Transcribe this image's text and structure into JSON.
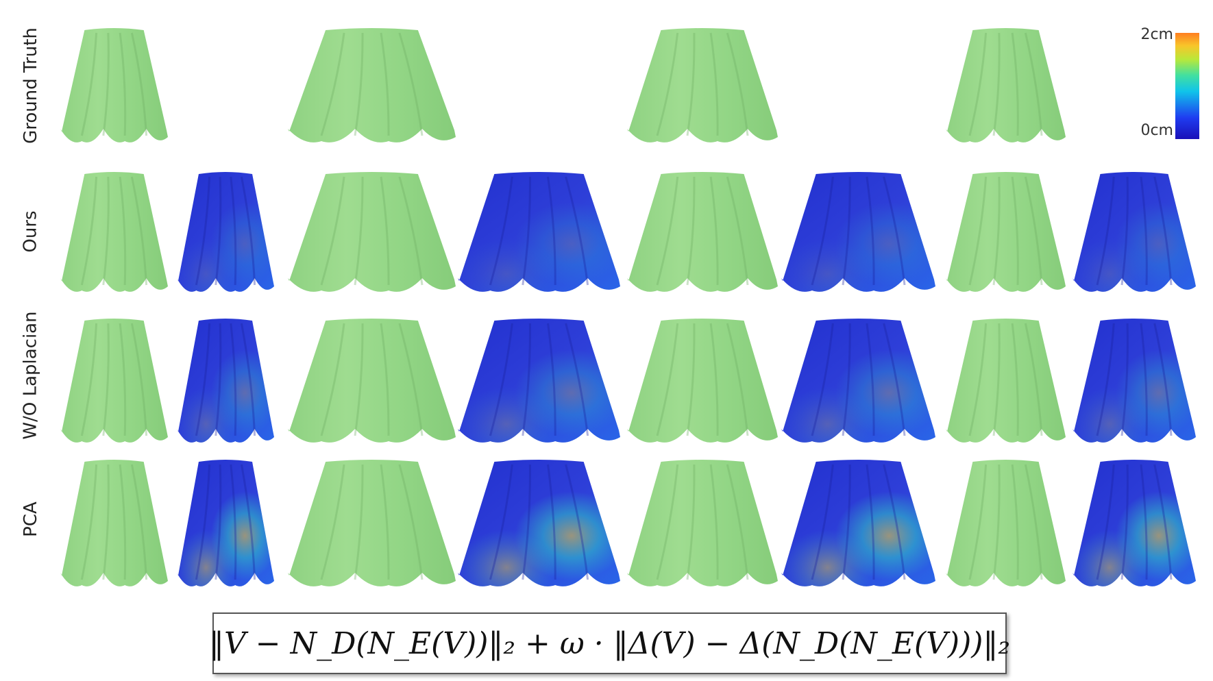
{
  "rows": [
    {
      "label": "Ground Truth"
    },
    {
      "label": "Ours"
    },
    {
      "label": "W/O Laplacian"
    },
    {
      "label": "PCA"
    }
  ],
  "colorbar": {
    "max_label": "2cm",
    "min_label": "0cm"
  },
  "formula": "‖V − N_D(N_E(V))‖₂ + ω · ‖Δ(V) − Δ(N_D(N_E(V)))‖₂",
  "colors": {
    "mesh_green": "#9fdc90",
    "error_blue": "#2e3fd8",
    "error_low": "#2230cf",
    "error_high": "#f2d030"
  }
}
